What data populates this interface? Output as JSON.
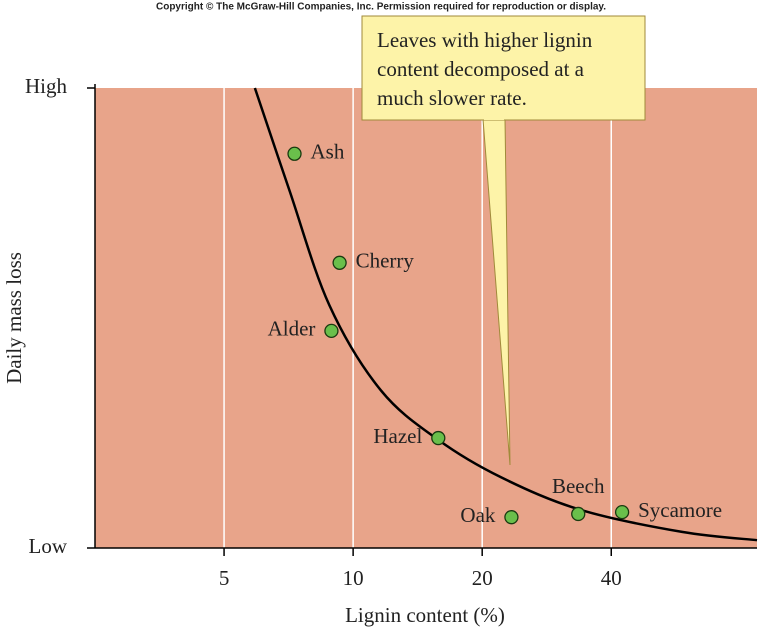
{
  "chart_data": {
    "type": "scatter",
    "copyright": "Copyright © The McGraw-Hill Companies, Inc. Permission required for reproduction or display.",
    "xlabel": "Lignin content (%)",
    "ylabel": "Daily mass loss",
    "annotation": [
      "Leaves with higher lignin",
      "content decomposed at a",
      "much slower rate."
    ],
    "log_x": true,
    "xlim": [
      2.5,
      87.5
    ],
    "xticks": [
      5,
      10,
      20,
      40
    ],
    "ylim": [
      0,
      100
    ],
    "yticks": [
      {
        "value": 0,
        "label": "Low"
      },
      {
        "value": 100,
        "label": "High"
      }
    ],
    "grid": true,
    "background": "#e8a48a",
    "labels": [
      "Ash",
      "Cherry",
      "Alder",
      "Hazel",
      "Oak",
      "Beech",
      "Sycamore"
    ],
    "x": [
      7.3,
      9.3,
      8.9,
      15.8,
      23.4,
      33.5,
      42.4
    ],
    "values": [
      85.7,
      62,
      47.2,
      23.9,
      6.7,
      7.4,
      7.8
    ],
    "color": "#6abf4b",
    "curve": {
      "x": [
        5.9,
        7.1,
        8.8,
        11.6,
        15.8,
        22.1,
        33.9,
        58.5,
        87.5
      ],
      "values": [
        100,
        77.8,
        52.8,
        34.3,
        23.5,
        15.4,
        8.3,
        3.5,
        1.7
      ],
      "color": "#000000"
    }
  }
}
